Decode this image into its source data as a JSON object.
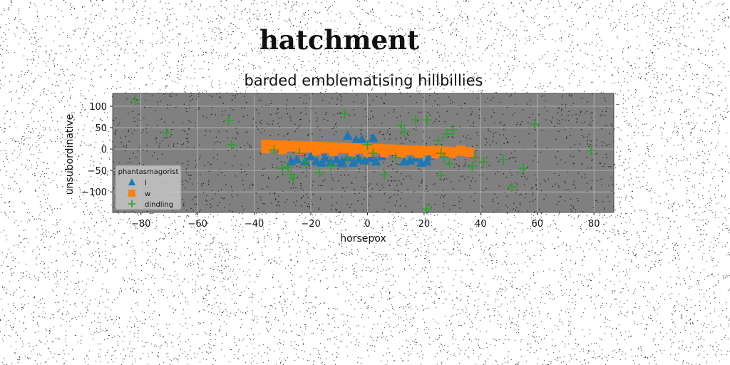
{
  "page": {
    "title": "hatchment"
  },
  "chart_data": {
    "type": "scatter",
    "title": "barded emblematising hillbillies",
    "xlabel": "horsepox",
    "ylabel": "unsubordinative",
    "xlim": [
      -90,
      87
    ],
    "ylim": [
      -148,
      130
    ],
    "xticks": [
      -80,
      -60,
      -40,
      -20,
      0,
      20,
      40,
      60,
      80
    ],
    "yticks": [
      -100,
      -50,
      0,
      50,
      100
    ],
    "xtick_labels": [
      "−80",
      "−60",
      "−40",
      "−20",
      "0",
      "20",
      "40",
      "60",
      "80"
    ],
    "ytick_labels": [
      "−100",
      "−50",
      "0",
      "50",
      "100"
    ],
    "grid": true,
    "legend": {
      "title": "phantasmagorist",
      "position": "lower-left"
    },
    "colors": {
      "plot_bg": "#808080",
      "l": "#1f77b4",
      "w": "#ff7f0e",
      "dindling": "#2ca02c"
    },
    "series": [
      {
        "name": "l",
        "marker": "triangle",
        "points": [
          [
            -27,
            -30
          ],
          [
            -25,
            -25
          ],
          [
            -22,
            -30
          ],
          [
            -20,
            -18
          ],
          [
            -18,
            -30
          ],
          [
            -15,
            -22
          ],
          [
            -13,
            -32
          ],
          [
            -11,
            -25
          ],
          [
            -9,
            -30
          ],
          [
            -7,
            -20
          ],
          [
            -5,
            -33
          ],
          [
            -3,
            -25
          ],
          [
            -1,
            -28
          ],
          [
            1,
            -22
          ],
          [
            3,
            -30
          ],
          [
            5,
            -18
          ],
          [
            -7,
            30
          ],
          [
            -4,
            20
          ],
          [
            -2,
            22
          ],
          [
            2,
            25
          ],
          [
            -16,
            -33
          ],
          [
            -9,
            -34
          ],
          [
            13,
            -30
          ],
          [
            15,
            -28
          ],
          [
            17,
            -22
          ],
          [
            19,
            -33
          ],
          [
            21,
            -30
          ],
          [
            22,
            -18
          ]
        ]
      },
      {
        "name": "w",
        "marker": "square",
        "points": [
          [
            -36,
            12
          ],
          [
            -34,
            11
          ],
          [
            -32,
            10
          ],
          [
            -30,
            10
          ],
          [
            -28,
            9
          ],
          [
            -26,
            9
          ],
          [
            -24,
            8
          ],
          [
            -22,
            8
          ],
          [
            -20,
            8
          ],
          [
            -18,
            7
          ],
          [
            -16,
            7
          ],
          [
            -14,
            6
          ],
          [
            -12,
            6
          ],
          [
            -10,
            5
          ],
          [
            -8,
            5
          ],
          [
            -6,
            4
          ],
          [
            -4,
            4
          ],
          [
            -2,
            3
          ],
          [
            0,
            3
          ],
          [
            2,
            2
          ],
          [
            4,
            2
          ],
          [
            6,
            1
          ],
          [
            8,
            1
          ],
          [
            10,
            0
          ],
          [
            12,
            0
          ],
          [
            14,
            -1
          ],
          [
            16,
            -1
          ],
          [
            18,
            -2
          ],
          [
            20,
            -2
          ],
          [
            22,
            -3
          ],
          [
            24,
            -3
          ],
          [
            26,
            -4
          ],
          [
            28,
            -4
          ],
          [
            30,
            -5
          ],
          [
            32,
            -5
          ],
          [
            34,
            -6
          ],
          [
            36,
            -6
          ],
          [
            -36,
            0
          ],
          [
            -30,
            -2
          ],
          [
            -24,
            -3
          ],
          [
            -18,
            -5
          ],
          [
            -12,
            -6
          ],
          [
            -6,
            -7
          ],
          [
            0,
            -8
          ],
          [
            6,
            -9
          ],
          [
            12,
            -10
          ],
          [
            18,
            -11
          ],
          [
            24,
            -12
          ],
          [
            30,
            -10
          ],
          [
            36,
            -8
          ],
          [
            -33,
            5
          ],
          [
            -27,
            4
          ],
          [
            -21,
            2
          ],
          [
            -15,
            1
          ],
          [
            -9,
            0
          ],
          [
            -3,
            -1
          ],
          [
            3,
            -2
          ],
          [
            9,
            -3
          ],
          [
            15,
            -4
          ],
          [
            21,
            -5
          ],
          [
            27,
            -6
          ],
          [
            33,
            -1
          ]
        ]
      },
      {
        "name": "dindling",
        "marker": "plus",
        "points": [
          [
            -82,
            115
          ],
          [
            -71,
            38
          ],
          [
            -49,
            67
          ],
          [
            -48,
            10
          ],
          [
            -33,
            -2
          ],
          [
            -30,
            -45
          ],
          [
            -28,
            -42
          ],
          [
            -27,
            -60
          ],
          [
            -26,
            -68
          ],
          [
            -24,
            -10
          ],
          [
            -22,
            -30
          ],
          [
            -17,
            -55
          ],
          [
            -13,
            -40
          ],
          [
            -8,
            82
          ],
          [
            -7,
            -20
          ],
          [
            0,
            10
          ],
          [
            2,
            -10
          ],
          [
            6,
            -60
          ],
          [
            10,
            -20
          ],
          [
            12,
            55
          ],
          [
            13,
            40
          ],
          [
            17,
            68
          ],
          [
            21,
            68
          ],
          [
            21,
            -140
          ],
          [
            25,
            20
          ],
          [
            26,
            -10
          ],
          [
            26,
            -62
          ],
          [
            27,
            -20
          ],
          [
            28,
            35
          ],
          [
            29,
            -35
          ],
          [
            30,
            45
          ],
          [
            37,
            -40
          ],
          [
            38,
            -20
          ],
          [
            41,
            -30
          ],
          [
            48,
            -25
          ],
          [
            51,
            -88
          ],
          [
            55,
            -45
          ],
          [
            59,
            58
          ],
          [
            79,
            -3
          ]
        ]
      }
    ]
  }
}
